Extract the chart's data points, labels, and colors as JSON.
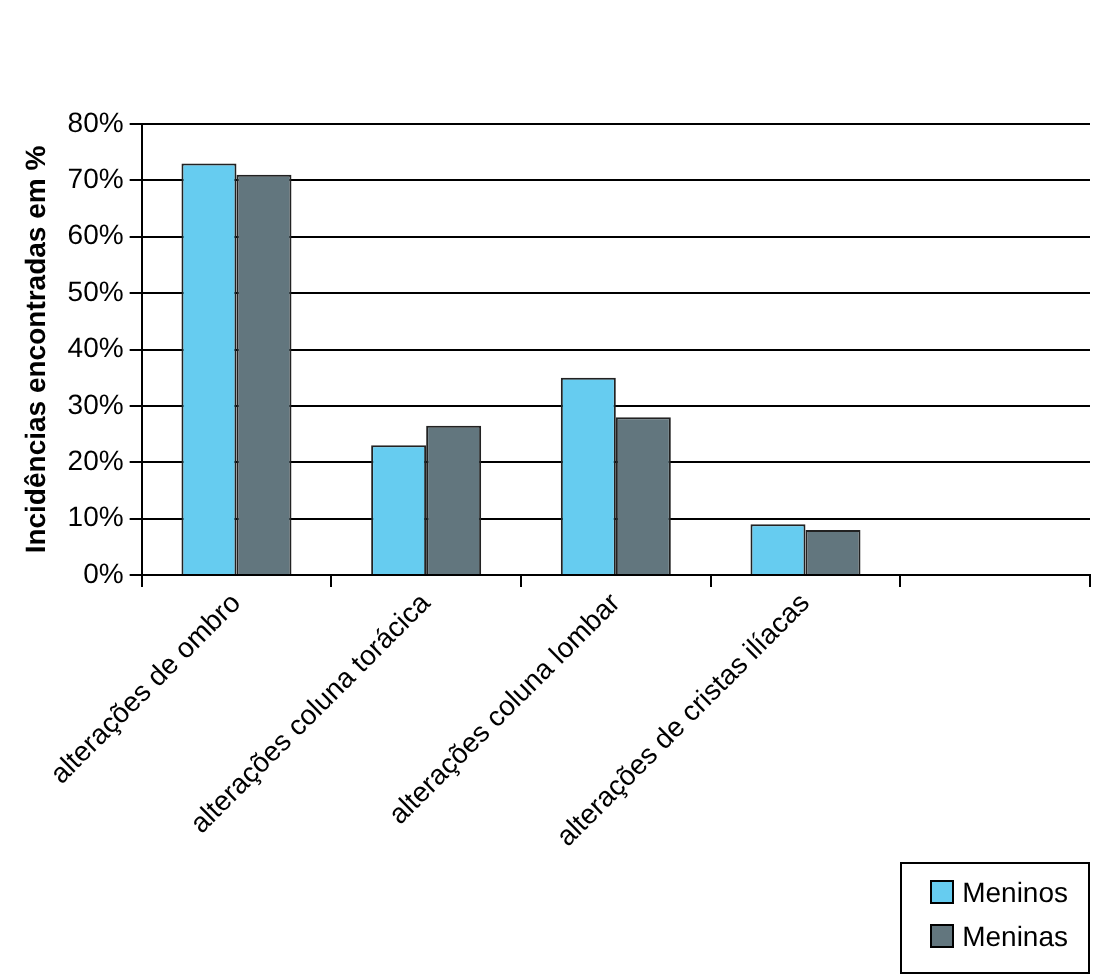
{
  "chart_data": {
    "type": "bar",
    "ylabel": "Incidências encontradas em %",
    "categories": [
      "alterações de ombro",
      "alterações coluna torácica",
      "alterações coluna lombar",
      "alterações de cristas ilíacas",
      null
    ],
    "series": [
      {
        "name": "Meninos",
        "color": "#66ccf0",
        "values": [
          73,
          23,
          35,
          9,
          null
        ]
      },
      {
        "name": "Meninas",
        "color": "#62767e",
        "values": [
          71,
          26.5,
          28,
          8,
          null
        ]
      }
    ],
    "ylim": [
      0,
      80
    ],
    "yticks": [
      {
        "value": 0,
        "label": "0%"
      },
      {
        "value": 10,
        "label": "10%"
      },
      {
        "value": 20,
        "label": "20%"
      },
      {
        "value": 30,
        "label": "30%"
      },
      {
        "value": 40,
        "label": "40%"
      },
      {
        "value": 50,
        "label": "50%"
      },
      {
        "value": 60,
        "label": "60%"
      },
      {
        "value": 70,
        "label": "70%"
      },
      {
        "value": 80,
        "label": "80%"
      }
    ],
    "grid": "y",
    "legend": "bottom right"
  }
}
